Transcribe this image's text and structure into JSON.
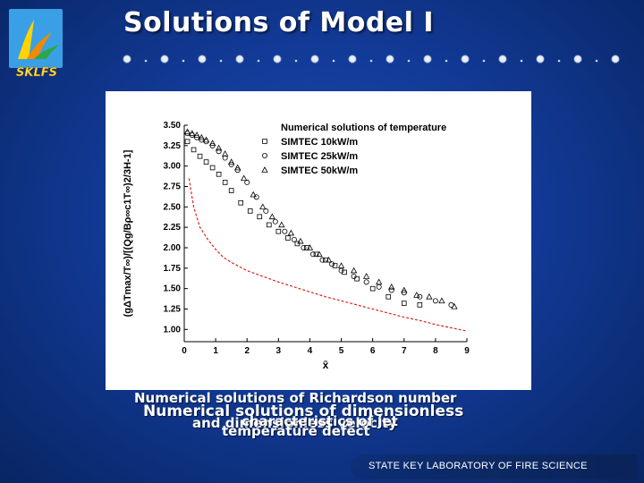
{
  "slide": {
    "title": "Solutions of Model I",
    "logo_text": "SKLFS",
    "caption_texts": [
      "Numerical solutions of Richardson number",
      "Numerical solutions of dimensionless",
      "and dimensionless velocity",
      "characteristics of jet",
      "temperature defect"
    ],
    "footer": "STATE KEY LABORATORY OF FIRE SCIENCE"
  },
  "colors": {
    "background": "#123a97",
    "series_curve": "#d9261c"
  },
  "chart_data": {
    "type": "scatter",
    "ylabel": "(gΔTmax/T∞)/[(Qg/Bρ∞c1T∞)2/3H-1]",
    "xlabel": "x̄",
    "xlim": [
      0,
      9
    ],
    "ylim": [
      0.85,
      3.5
    ],
    "x_ticks": [
      "0",
      "1",
      "2",
      "3",
      "4",
      "5",
      "6",
      "7",
      "8",
      "9"
    ],
    "y_ticks": [
      "1.00",
      "1.25",
      "1.50",
      "1.75",
      "2.00",
      "2.25",
      "2.50",
      "2.75",
      "3.00",
      "3.25",
      "3.50"
    ],
    "legend_title": "Numerical solutions of temperature",
    "legend_position": "top-right",
    "series": [
      {
        "name": "SIMTEC 10kW/m",
        "marker": "square",
        "x": [
          0.1,
          0.3,
          0.5,
          0.7,
          0.9,
          1.1,
          1.3,
          1.5,
          1.8,
          2.1,
          2.4,
          2.7,
          3.0,
          3.3,
          3.6,
          3.9,
          4.2,
          4.5,
          4.8,
          5.1,
          5.5,
          6.0,
          6.5,
          7.0,
          7.5
        ],
        "y": [
          3.3,
          3.2,
          3.12,
          3.05,
          2.98,
          2.9,
          2.8,
          2.7,
          2.55,
          2.45,
          2.38,
          2.28,
          2.2,
          2.12,
          2.05,
          2.0,
          1.92,
          1.85,
          1.78,
          1.7,
          1.62,
          1.5,
          1.4,
          1.32,
          1.3
        ]
      },
      {
        "name": "SIMTEC 25kW/m",
        "marker": "circle",
        "x": [
          0.1,
          0.25,
          0.4,
          0.55,
          0.7,
          0.9,
          1.1,
          1.3,
          1.5,
          1.7,
          2.0,
          2.3,
          2.6,
          2.9,
          3.2,
          3.5,
          3.8,
          4.1,
          4.4,
          4.7,
          5.0,
          5.4,
          5.8,
          6.2,
          6.6,
          7.0,
          7.5,
          8.0,
          8.5
        ],
        "y": [
          3.4,
          3.38,
          3.35,
          3.32,
          3.3,
          3.25,
          3.18,
          3.1,
          3.02,
          2.95,
          2.8,
          2.62,
          2.45,
          2.32,
          2.2,
          2.1,
          2.0,
          1.92,
          1.85,
          1.8,
          1.72,
          1.65,
          1.58,
          1.52,
          1.48,
          1.45,
          1.4,
          1.35,
          1.3
        ]
      },
      {
        "name": "SIMTEC 50kW/m",
        "marker": "triangle",
        "x": [
          0.1,
          0.25,
          0.4,
          0.55,
          0.7,
          0.9,
          1.1,
          1.3,
          1.5,
          1.7,
          1.9,
          2.2,
          2.5,
          2.8,
          3.1,
          3.4,
          3.7,
          4.0,
          4.3,
          4.6,
          5.0,
          5.4,
          5.8,
          6.2,
          6.6,
          7.0,
          7.4,
          7.8,
          8.2,
          8.6
        ],
        "y": [
          3.42,
          3.4,
          3.38,
          3.35,
          3.32,
          3.28,
          3.22,
          3.15,
          3.05,
          2.98,
          2.85,
          2.65,
          2.5,
          2.38,
          2.28,
          2.18,
          2.08,
          2.0,
          1.92,
          1.85,
          1.78,
          1.72,
          1.65,
          1.58,
          1.52,
          1.48,
          1.42,
          1.4,
          1.35,
          1.28
        ]
      }
    ],
    "curve": {
      "style": "dashed",
      "x": [
        0.15,
        0.3,
        0.5,
        0.75,
        1.0,
        1.25,
        1.5,
        2.0,
        2.5,
        3.0,
        3.5,
        4.0,
        4.5,
        5.0,
        5.5,
        6.0,
        6.5,
        7.0,
        7.5,
        8.0,
        8.5,
        9.0
      ],
      "y": [
        2.85,
        2.5,
        2.25,
        2.1,
        1.98,
        1.88,
        1.82,
        1.72,
        1.65,
        1.58,
        1.52,
        1.46,
        1.4,
        1.35,
        1.3,
        1.25,
        1.2,
        1.15,
        1.11,
        1.06,
        1.02,
        0.98
      ]
    }
  }
}
